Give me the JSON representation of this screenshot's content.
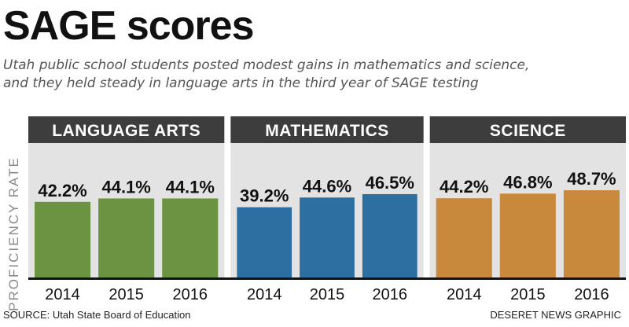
{
  "header": {
    "title": "SAGE scores",
    "subtitle_line1": "Utah public school students posted modest gains in mathematics and science,",
    "subtitle_line2": "and they held steady in language arts in the third year of SAGE testing"
  },
  "footer": {
    "source": "SOURCE: Utah State Board of Education",
    "credit": "DESERET NEWS GRAPHIC"
  },
  "chart_data": {
    "type": "bar",
    "ylabel": "PROFICIENCY RATE",
    "ylim": [
      0,
      75
    ],
    "value_suffix": "%",
    "grid": false,
    "legend": "none",
    "panels": [
      {
        "name": "LANGUAGE ARTS",
        "color": "#6a9441",
        "categories": [
          "2014",
          "2015",
          "2016"
        ],
        "values": [
          42.2,
          44.1,
          44.1
        ]
      },
      {
        "name": "MATHEMATICS",
        "color": "#2e6fa2",
        "categories": [
          "2014",
          "2015",
          "2016"
        ],
        "values": [
          39.2,
          44.6,
          46.5
        ]
      },
      {
        "name": "SCIENCE",
        "color": "#c8893d",
        "categories": [
          "2014",
          "2015",
          "2016"
        ],
        "values": [
          44.2,
          46.8,
          48.7
        ]
      }
    ]
  }
}
